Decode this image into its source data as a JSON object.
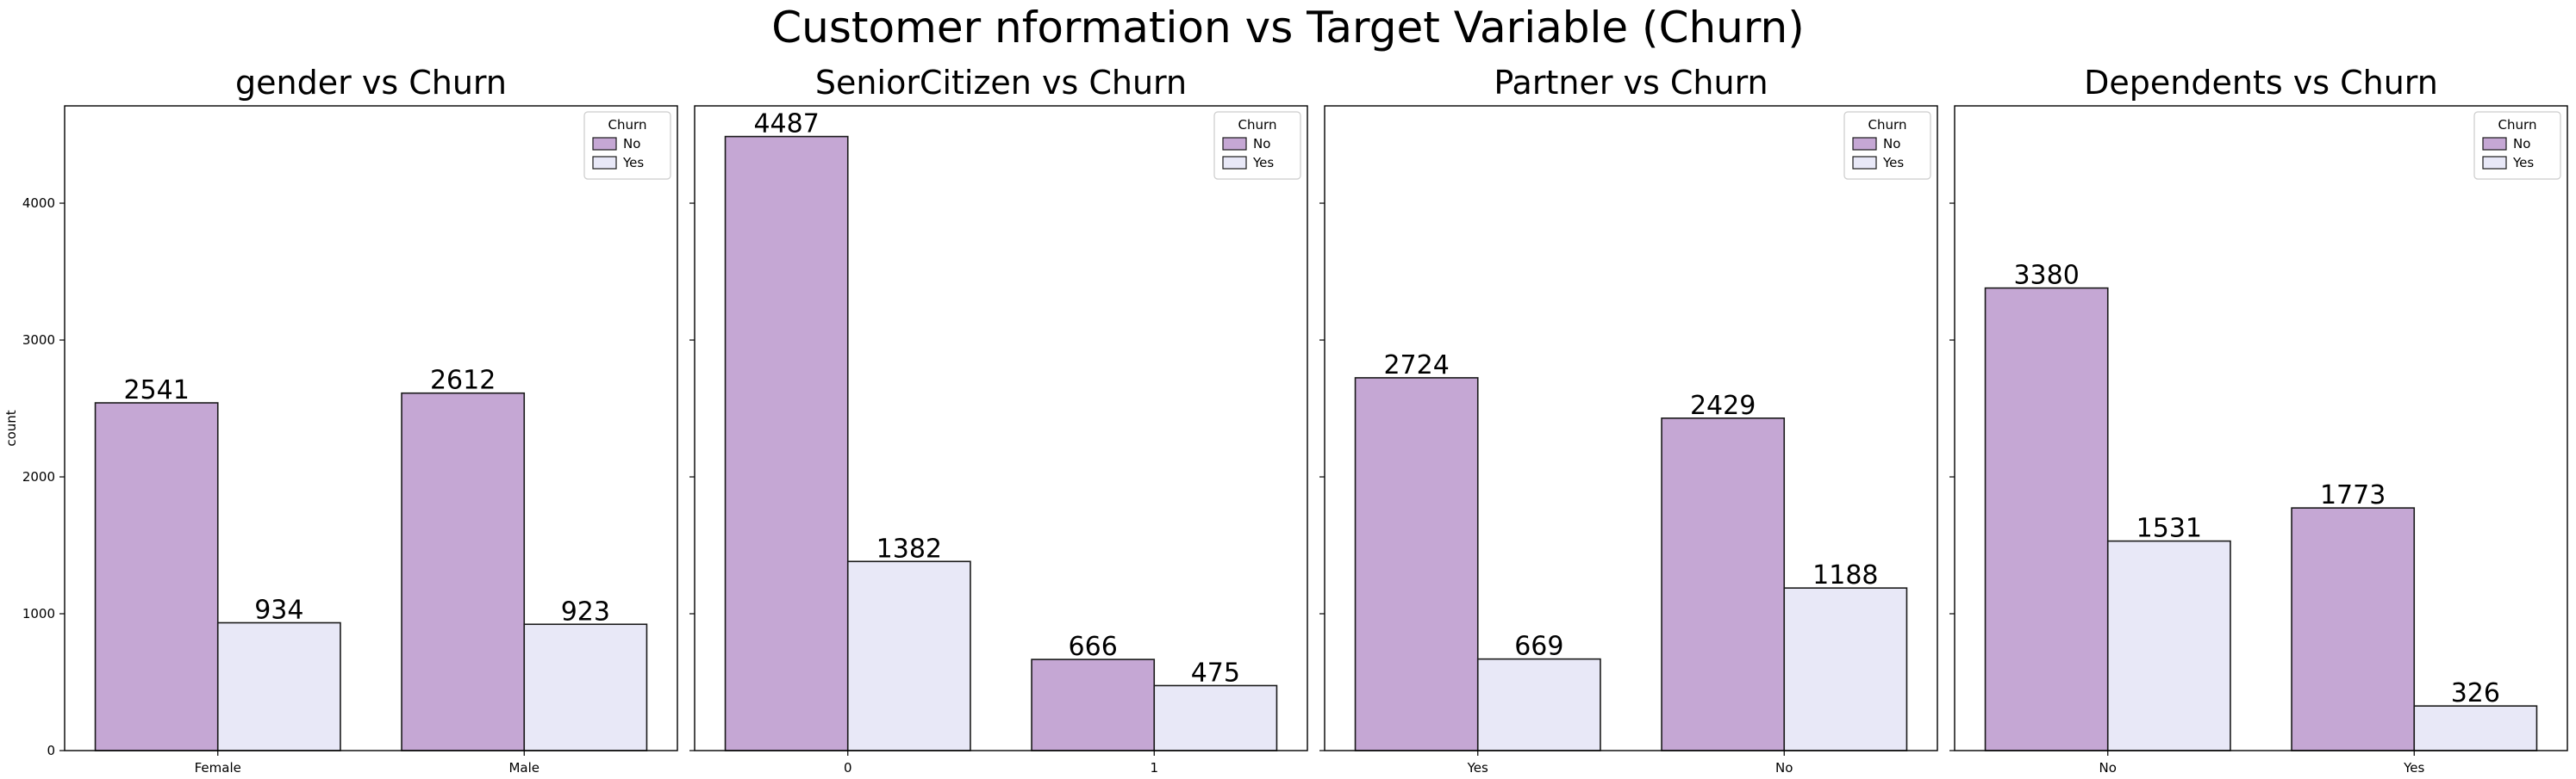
{
  "figure": {
    "suptitle": "Customer nformation vs Target Variable (Churn)",
    "ylabel": "count"
  },
  "colors": {
    "No": "#c5a7d4",
    "Yes": "#e8e8f7",
    "edge": "#1a1a1a"
  },
  "chart_data": [
    {
      "type": "bar",
      "title": "gender vs Churn",
      "categories": [
        "Female",
        "Male"
      ],
      "series": [
        {
          "name": "No",
          "values": [
            2541,
            2612
          ]
        },
        {
          "name": "Yes",
          "values": [
            934,
            923
          ]
        }
      ],
      "legend": {
        "title": "Churn",
        "placement": "top-right"
      },
      "ylabel": "count",
      "ylim": [
        0,
        4711
      ],
      "yticks": [
        0,
        1000,
        2000,
        3000,
        4000
      ],
      "grid": false
    },
    {
      "type": "bar",
      "title": "SeniorCitizen vs Churn",
      "categories": [
        "0",
        "1"
      ],
      "series": [
        {
          "name": "No",
          "values": [
            4487,
            666
          ]
        },
        {
          "name": "Yes",
          "values": [
            1382,
            475
          ]
        }
      ],
      "legend": {
        "title": "Churn",
        "placement": "top-right"
      },
      "ylim": [
        0,
        4711
      ],
      "grid": false
    },
    {
      "type": "bar",
      "title": "Partner vs Churn",
      "categories": [
        "Yes",
        "No"
      ],
      "series": [
        {
          "name": "No",
          "values": [
            2724,
            2429
          ]
        },
        {
          "name": "Yes",
          "values": [
            669,
            1188
          ]
        }
      ],
      "legend": {
        "title": "Churn",
        "placement": "top-right"
      },
      "ylim": [
        0,
        4711
      ],
      "grid": false
    },
    {
      "type": "bar",
      "title": "Dependents vs Churn",
      "categories": [
        "No",
        "Yes"
      ],
      "series": [
        {
          "name": "No",
          "values": [
            3380,
            1773
          ]
        },
        {
          "name": "Yes",
          "values": [
            1531,
            326
          ]
        }
      ],
      "legend": {
        "title": "Churn",
        "placement": "top-right"
      },
      "ylim": [
        0,
        4711
      ],
      "grid": false
    }
  ]
}
